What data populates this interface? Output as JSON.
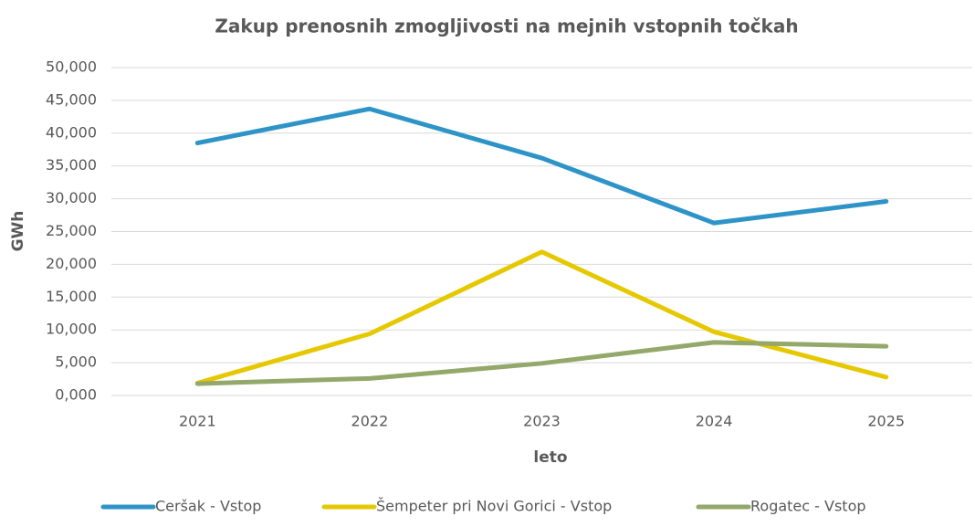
{
  "chart_data": {
    "type": "line",
    "title": "Zakup prenosnih zmogljivosti na mejnih vstopnih točkah",
    "x_label": "leto",
    "y_label": "GWh",
    "categories": [
      "2021",
      "2022",
      "2023",
      "2024",
      "2025"
    ],
    "series": [
      {
        "name": "Ceršak - Vstop",
        "color": "#2e94c8",
        "values": [
          38500,
          43700,
          36200,
          26300,
          29600
        ]
      },
      {
        "name": "Šempeter pri Novi Gorici - Vstop",
        "color": "#e6c800",
        "values": [
          1900,
          9400,
          21900,
          9700,
          2800
        ]
      },
      {
        "name": "Rogatec - Vstop",
        "color": "#93a86a",
        "values": [
          1800,
          2600,
          4900,
          8100,
          7500
        ]
      }
    ],
    "ylim": [
      0,
      50000
    ],
    "yticks": [
      {
        "value": 0,
        "label": "0,000"
      },
      {
        "value": 5000,
        "label": "5,000"
      },
      {
        "value": 10000,
        "label": "10,000"
      },
      {
        "value": 15000,
        "label": "15,000"
      },
      {
        "value": 20000,
        "label": "20,000"
      },
      {
        "value": 25000,
        "label": "25,000"
      },
      {
        "value": 30000,
        "label": "30,000"
      },
      {
        "value": 35000,
        "label": "35,000"
      },
      {
        "value": 40000,
        "label": "40,000"
      },
      {
        "value": 45000,
        "label": "45,000"
      },
      {
        "value": 50000,
        "label": "50,000"
      }
    ],
    "grid": true,
    "legend": "bottom"
  }
}
